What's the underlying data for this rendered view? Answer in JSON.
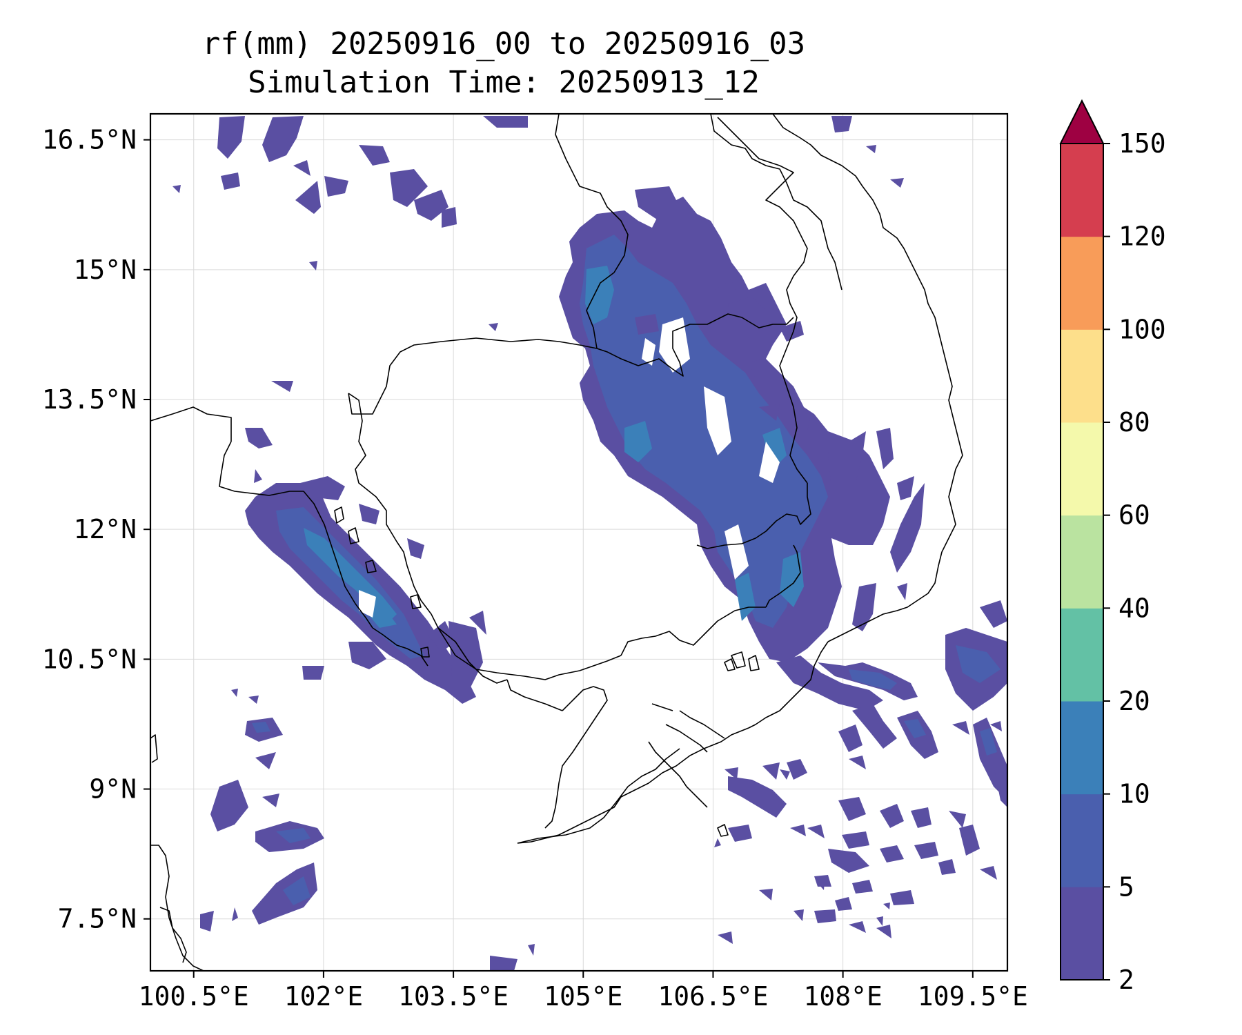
{
  "title": {
    "line1": "rf(mm) 20250916_00 to 20250916_03",
    "line2": "Simulation Time: 20250913_12"
  },
  "map": {
    "lon_range": [
      100.0,
      109.9
    ],
    "lat_range": [
      6.9,
      16.8
    ],
    "lon_ticks": [
      {
        "value": 100.5,
        "label": "100.5°E"
      },
      {
        "value": 102.0,
        "label": "102°E"
      },
      {
        "value": 103.5,
        "label": "103.5°E"
      },
      {
        "value": 105.0,
        "label": "105°E"
      },
      {
        "value": 106.5,
        "label": "106.5°E"
      },
      {
        "value": 108.0,
        "label": "108°E"
      },
      {
        "value": 109.5,
        "label": "109.5°E"
      }
    ],
    "lat_ticks": [
      {
        "value": 16.5,
        "label": "16.5°N"
      },
      {
        "value": 15.0,
        "label": "15°N"
      },
      {
        "value": 13.5,
        "label": "13.5°N"
      },
      {
        "value": 12.0,
        "label": "12°N"
      },
      {
        "value": 10.5,
        "label": "10.5°N"
      },
      {
        "value": 9.0,
        "label": "9°N"
      },
      {
        "value": 7.5,
        "label": "7.5°N"
      }
    ],
    "grid": true
  },
  "colorbar": {
    "levels": [
      2,
      5,
      10,
      20,
      40,
      60,
      80,
      100,
      120,
      150
    ],
    "labels": [
      "2",
      "5",
      "10",
      "20",
      "40",
      "60",
      "80",
      "100",
      "120",
      "150"
    ],
    "colors": [
      "#5a4fa2",
      "#4a5fae",
      "#3b80b9",
      "#63c1a5",
      "#bae3a0",
      "#f4f9ab",
      "#fddf8b",
      "#f89c59",
      "#d53e4f"
    ],
    "extend_color": "#9e0142",
    "extend": "max"
  }
}
